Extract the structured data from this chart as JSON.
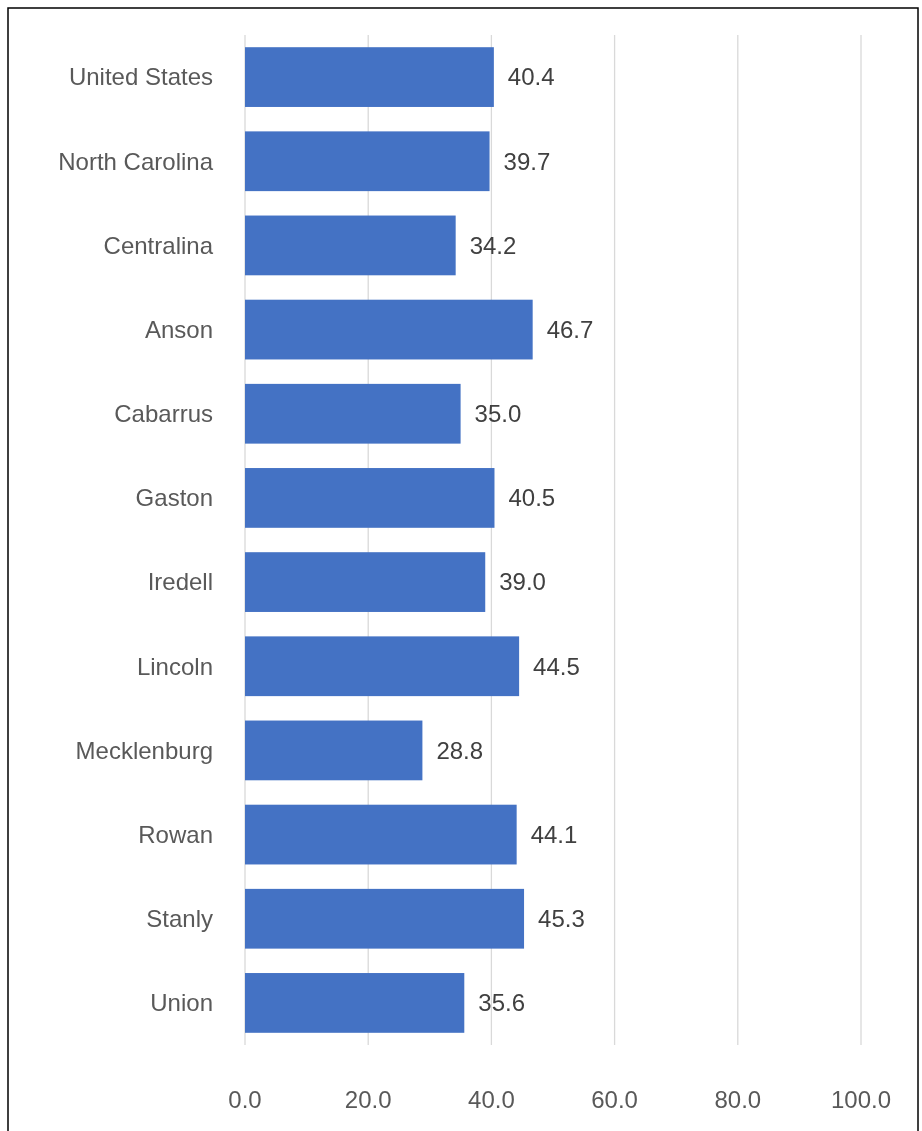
{
  "chart_data": {
    "type": "bar",
    "orientation": "horizontal",
    "categories": [
      "United States",
      "North Carolina",
      "Centralina",
      "Anson",
      "Cabarrus",
      "Gaston",
      "Iredell",
      "Lincoln",
      "Mecklenburg",
      "Rowan",
      "Stanly",
      "Union"
    ],
    "values": [
      40.4,
      39.7,
      34.2,
      46.7,
      35.0,
      40.5,
      39.0,
      44.5,
      28.8,
      44.1,
      45.3,
      35.6
    ],
    "value_labels": [
      "40.4",
      "39.7",
      "34.2",
      "46.7",
      "35.0",
      "40.5",
      "39.0",
      "44.5",
      "28.8",
      "44.1",
      "45.3",
      "35.6"
    ],
    "color": "#4472c4",
    "xlim": [
      0,
      100
    ],
    "xticks": [
      {
        "value": 0,
        "label": "0.0"
      },
      {
        "value": 20,
        "label": "20.0"
      },
      {
        "value": 40,
        "label": "40.0"
      },
      {
        "value": 60,
        "label": "60.0"
      },
      {
        "value": 80,
        "label": "80.0"
      },
      {
        "value": 100,
        "label": "100.0"
      }
    ],
    "grid": "x"
  }
}
